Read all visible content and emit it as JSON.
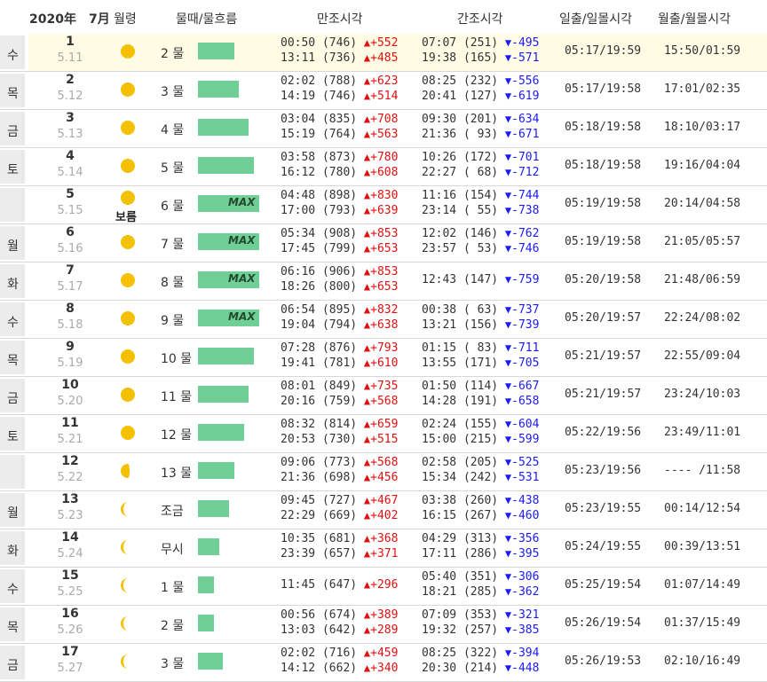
{
  "header": {
    "year": "2020年",
    "month": "7月",
    "moon_phase": "월령",
    "tide": "물때/물흐름",
    "high_tide": "만조시각",
    "low_tide": "간조시각",
    "sun": "일출/일몰시각",
    "moon": "월출/월몰시각"
  },
  "colors": {
    "bar": "#6fcf97",
    "sunday": "#d40000",
    "rise": "#e01010",
    "fall": "#1a1aff",
    "today_bg": "#fffbe4"
  },
  "rows": [
    {
      "dow": "수",
      "sunday": false,
      "day": "1",
      "lunar": "5.11",
      "phase": "moon-icon",
      "mul": "2 물",
      "bar": 0.45,
      "max": "",
      "high": [
        [
          "00:50 (746)",
          "+552"
        ],
        [
          "13:11 (736)",
          "+485"
        ]
      ],
      "low": [
        [
          "07:07 (251)",
          "-495"
        ],
        [
          "19:38 (165)",
          "-571"
        ]
      ],
      "sun": "05:17/19:59",
      "moon": "15:50/01:59"
    },
    {
      "dow": "목",
      "sunday": false,
      "day": "2",
      "lunar": "5.12",
      "phase": "moon-icon",
      "mul": "3 물",
      "bar": 0.5,
      "max": "",
      "high": [
        [
          "02:02 (788)",
          "+623"
        ],
        [
          "14:19 (746)",
          "+514"
        ]
      ],
      "low": [
        [
          "08:25 (232)",
          "-556"
        ],
        [
          "20:41 (127)",
          "-619"
        ]
      ],
      "sun": "05:17/19:58",
      "moon": "17:01/02:35"
    },
    {
      "dow": "금",
      "sunday": false,
      "day": "3",
      "lunar": "5.13",
      "phase": "moon-icon",
      "mul": "4 물",
      "bar": 0.62,
      "max": "",
      "high": [
        [
          "03:04 (835)",
          "+708"
        ],
        [
          "15:19 (764)",
          "+563"
        ]
      ],
      "low": [
        [
          "09:30 (201)",
          "-634"
        ],
        [
          "21:36 ( 93)",
          "-671"
        ]
      ],
      "sun": "05:18/19:58",
      "moon": "18:10/03:17"
    },
    {
      "dow": "토",
      "sunday": false,
      "day": "4",
      "lunar": "5.14",
      "phase": "moon-icon",
      "mul": "5 물",
      "bar": 0.69,
      "max": "",
      "high": [
        [
          "03:58 (873)",
          "+780"
        ],
        [
          "16:12 (780)",
          "+608"
        ]
      ],
      "low": [
        [
          "10:26 (172)",
          "-701"
        ],
        [
          "22:27 ( 68)",
          "-712"
        ]
      ],
      "sun": "05:18/19:58",
      "moon": "19:16/04:04"
    },
    {
      "dow": "일",
      "sunday": true,
      "day": "5",
      "lunar": "5.15",
      "phase": "full-moon-icon",
      "moonlabel": "보름",
      "mul": "6 물",
      "bar": 0.75,
      "max": "MAX",
      "high": [
        [
          "04:48 (898)",
          "+830"
        ],
        [
          "17:00 (793)",
          "+639"
        ]
      ],
      "low": [
        [
          "11:16 (154)",
          "-744"
        ],
        [
          "23:14 ( 55)",
          "-738"
        ]
      ],
      "sun": "05:19/19:58",
      "moon": "20:14/04:58"
    },
    {
      "dow": "월",
      "sunday": false,
      "day": "6",
      "lunar": "5.16",
      "phase": "moon-icon",
      "mul": "7 물",
      "bar": 0.75,
      "max": "MAX",
      "high": [
        [
          "05:34 (908)",
          "+853"
        ],
        [
          "17:45 (799)",
          "+653"
        ]
      ],
      "low": [
        [
          "12:02 (146)",
          "-762"
        ],
        [
          "23:57 ( 53)",
          "-746"
        ]
      ],
      "sun": "05:19/19:58",
      "moon": "21:05/05:57"
    },
    {
      "dow": "화",
      "sunday": false,
      "day": "7",
      "lunar": "5.17",
      "phase": "moon-icon",
      "mul": "8 물",
      "bar": 0.75,
      "max": "MAX",
      "high": [
        [
          "06:16 (906)",
          "+853"
        ],
        [
          "18:26 (800)",
          "+653"
        ]
      ],
      "low": [
        [
          "12:43 (147)",
          "-759"
        ]
      ],
      "sun": "05:20/19:58",
      "moon": "21:48/06:59"
    },
    {
      "dow": "수",
      "sunday": false,
      "day": "8",
      "lunar": "5.18",
      "phase": "moon-icon",
      "mul": "9 물",
      "bar": 0.75,
      "max": "MAX",
      "high": [
        [
          "06:54 (895)",
          "+832"
        ],
        [
          "19:04 (794)",
          "+638"
        ]
      ],
      "low": [
        [
          "00:38 ( 63)",
          "-737"
        ],
        [
          "13:21 (156)",
          "-739"
        ]
      ],
      "sun": "05:20/19:57",
      "moon": "22:24/08:02"
    },
    {
      "dow": "목",
      "sunday": false,
      "day": "9",
      "lunar": "5.19",
      "phase": "moon-icon",
      "mul": "10 물",
      "bar": 0.69,
      "max": "",
      "high": [
        [
          "07:28 (876)",
          "+793"
        ],
        [
          "19:41 (781)",
          "+610"
        ]
      ],
      "low": [
        [
          "01:15 ( 83)",
          "-711"
        ],
        [
          "13:55 (171)",
          "-705"
        ]
      ],
      "sun": "05:21/19:57",
      "moon": "22:55/09:04"
    },
    {
      "dow": "금",
      "sunday": false,
      "day": "10",
      "lunar": "5.20",
      "phase": "moon-icon",
      "mul": "11 물",
      "bar": 0.62,
      "max": "",
      "high": [
        [
          "08:01 (849)",
          "+735"
        ],
        [
          "20:16 (759)",
          "+568"
        ]
      ],
      "low": [
        [
          "01:50 (114)",
          "-667"
        ],
        [
          "14:28 (191)",
          "-658"
        ]
      ],
      "sun": "05:21/19:57",
      "moon": "23:24/10:03"
    },
    {
      "dow": "토",
      "sunday": false,
      "day": "11",
      "lunar": "5.21",
      "phase": "moon-icon",
      "mul": "12 물",
      "bar": 0.56,
      "max": "",
      "high": [
        [
          "08:32 (814)",
          "+659"
        ],
        [
          "20:53 (730)",
          "+515"
        ]
      ],
      "low": [
        [
          "02:24 (155)",
          "-604"
        ],
        [
          "15:00 (215)",
          "-599"
        ]
      ],
      "sun": "05:22/19:56",
      "moon": "23:49/11:01"
    },
    {
      "dow": "일",
      "sunday": true,
      "day": "12",
      "lunar": "5.22",
      "phase": "half-moon-icon",
      "mul": "13 물",
      "bar": 0.45,
      "max": "",
      "high": [
        [
          "09:06 (773)",
          "+568"
        ],
        [
          "21:36 (698)",
          "+456"
        ]
      ],
      "low": [
        [
          "02:58 (205)",
          "-525"
        ],
        [
          "15:34 (242)",
          "-531"
        ]
      ],
      "sun": "05:23/19:56",
      "moon": "---- /11:58"
    },
    {
      "dow": "월",
      "sunday": false,
      "day": "13",
      "lunar": "5.23",
      "phase": "crescent-moon-icon",
      "mul": "조금",
      "bar": 0.38,
      "max": "",
      "high": [
        [
          "09:45 (727)",
          "+467"
        ],
        [
          "22:29 (669)",
          "+402"
        ]
      ],
      "low": [
        [
          "03:38 (260)",
          "-438"
        ],
        [
          "16:15 (267)",
          "-460"
        ]
      ],
      "sun": "05:23/19:55",
      "moon": "00:14/12:54"
    },
    {
      "dow": "화",
      "sunday": false,
      "day": "14",
      "lunar": "5.24",
      "phase": "crescent-moon-icon",
      "mul": "무시",
      "bar": 0.26,
      "max": "",
      "high": [
        [
          "10:35 (681)",
          "+368"
        ],
        [
          "23:39 (657)",
          "+371"
        ]
      ],
      "low": [
        [
          "04:29 (313)",
          "-356"
        ],
        [
          "17:11 (286)",
          "-395"
        ]
      ],
      "sun": "05:24/19:55",
      "moon": "00:39/13:51"
    },
    {
      "dow": "수",
      "sunday": false,
      "day": "15",
      "lunar": "5.25",
      "phase": "crescent-moon-icon",
      "mul": "1 물",
      "bar": 0.2,
      "max": "",
      "high": [
        [
          "11:45 (647)",
          "+296"
        ]
      ],
      "low": [
        [
          "05:40 (351)",
          "-306"
        ],
        [
          "18:21 (285)",
          "-362"
        ]
      ],
      "sun": "05:25/19:54",
      "moon": "01:07/14:49"
    },
    {
      "dow": "목",
      "sunday": false,
      "day": "16",
      "lunar": "5.26",
      "phase": "crescent-moon-icon",
      "mul": "2 물",
      "bar": 0.2,
      "max": "",
      "high": [
        [
          "00:56 (674)",
          "+389"
        ],
        [
          "13:03 (642)",
          "+289"
        ]
      ],
      "low": [
        [
          "07:09 (353)",
          "-321"
        ],
        [
          "19:32 (257)",
          "-385"
        ]
      ],
      "sun": "05:26/19:54",
      "moon": "01:37/15:49"
    },
    {
      "dow": "금",
      "sunday": false,
      "day": "17",
      "lunar": "5.27",
      "phase": "crescent-moon-icon",
      "mul": "3 물",
      "bar": 0.3,
      "max": "",
      "high": [
        [
          "02:02 (716)",
          "+459"
        ],
        [
          "14:12 (662)",
          "+340"
        ]
      ],
      "low": [
        [
          "08:25 (322)",
          "-394"
        ],
        [
          "20:30 (214)",
          "-448"
        ]
      ],
      "sun": "05:26/19:53",
      "moon": "02:10/16:49"
    }
  ]
}
